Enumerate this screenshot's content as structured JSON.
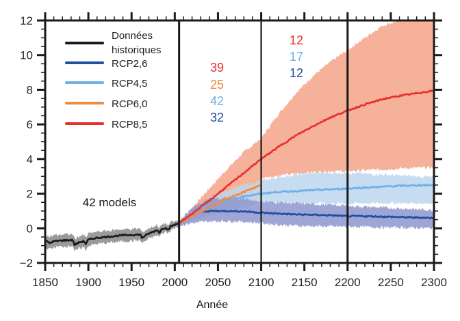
{
  "chart_data": {
    "type": "line",
    "title": "",
    "xlabel": "Année",
    "ylabel": "",
    "xlim": [
      1850,
      2300
    ],
    "ylim": [
      -2,
      12
    ],
    "grid": false,
    "xticks": [
      1850,
      1900,
      1950,
      2000,
      2050,
      2100,
      2150,
      2200,
      2250,
      2300
    ],
    "xtick_labels": [
      "1850",
      "1900",
      "1950",
      "2000",
      "2050",
      "2100",
      "2150",
      "2200",
      "2250",
      "2300"
    ],
    "yticks": [
      -2,
      0,
      2,
      4,
      6,
      8,
      10,
      12
    ],
    "ytick_labels": [
      "−2",
      "0",
      "2",
      "4",
      "6",
      "8",
      "10",
      "12"
    ],
    "vertical_lines": [
      2005,
      2100,
      2200
    ],
    "legend": {
      "placement": "top-left",
      "entries": [
        {
          "label": "Données historiques",
          "label_lines": [
            "Données",
            "historiques"
          ],
          "color": "#1a1a1a"
        },
        {
          "label": "RCP2,6",
          "color": "#1f4fa0"
        },
        {
          "label": "RCP4,5",
          "color": "#6fb0e4"
        },
        {
          "label": "RCP6,0",
          "color": "#f08a3e"
        },
        {
          "label": "RCP8,5",
          "color": "#e8302c"
        }
      ]
    },
    "annotations": {
      "models_label": "42 models",
      "model_counts_2006_2100": [
        {
          "scenario": "RCP8,5",
          "count": "39",
          "color": "#e8302c"
        },
        {
          "scenario": "RCP6,0",
          "count": "25",
          "color": "#f08a3e"
        },
        {
          "scenario": "RCP4,5",
          "count": "42",
          "color": "#6fb0e4"
        },
        {
          "scenario": "RCP2,6",
          "count": "32",
          "color": "#1f4fa0"
        }
      ],
      "model_counts_2101_2200": [
        {
          "scenario": "RCP8,5",
          "count": "12",
          "color": "#e8302c"
        },
        {
          "scenario": "RCP4,5",
          "count": "17",
          "color": "#6fb0e4"
        },
        {
          "scenario": "RCP2,6",
          "count": "12",
          "color": "#1f4fa0"
        }
      ]
    },
    "series": [
      {
        "name": "Données historiques",
        "color": "#1a1a1a",
        "band_color": "#9a9a9c",
        "x": [
          1850,
          1855,
          1860,
          1870,
          1882,
          1884,
          1890,
          1895,
          1897,
          1900,
          1910,
          1920,
          1930,
          1940,
          1950,
          1960,
          1962,
          1964,
          1970,
          1975,
          1980,
          1982,
          1985,
          1990,
          1992,
          1995,
          2000,
          2005
        ],
        "mean": [
          -0.7,
          -0.85,
          -0.75,
          -0.7,
          -0.68,
          -0.95,
          -0.8,
          -0.75,
          -0.9,
          -0.65,
          -0.55,
          -0.5,
          -0.45,
          -0.4,
          -0.38,
          -0.36,
          -0.55,
          -0.48,
          -0.3,
          -0.2,
          -0.1,
          -0.25,
          -0.05,
          0.05,
          -0.1,
          0.1,
          0.2,
          0.3
        ],
        "lower": [
          -1.1,
          -1.2,
          -1.1,
          -1.05,
          -1.0,
          -1.35,
          -1.15,
          -1.1,
          -1.25,
          -1.0,
          -0.9,
          -0.85,
          -0.8,
          -0.75,
          -0.72,
          -0.7,
          -0.85,
          -0.8,
          -0.6,
          -0.5,
          -0.4,
          -0.5,
          -0.3,
          -0.2,
          -0.3,
          -0.1,
          0.0,
          0.15
        ],
        "upper": [
          -0.35,
          -0.5,
          -0.4,
          -0.35,
          -0.35,
          -0.6,
          -0.45,
          -0.4,
          -0.55,
          -0.3,
          -0.2,
          -0.15,
          -0.1,
          -0.05,
          -0.05,
          -0.02,
          -0.25,
          -0.18,
          0.0,
          0.1,
          0.2,
          0.0,
          0.2,
          0.3,
          0.15,
          0.35,
          0.4,
          0.45
        ]
      },
      {
        "name": "RCP8,5",
        "color": "#e8302c",
        "band_color": "#f4a38a",
        "x": [
          2005,
          2020,
          2040,
          2060,
          2080,
          2100,
          2120,
          2140,
          2160,
          2180,
          2200,
          2220,
          2240,
          2260,
          2280,
          2300
        ],
        "mean": [
          0.3,
          0.85,
          1.6,
          2.4,
          3.2,
          4.0,
          4.7,
          5.35,
          5.9,
          6.4,
          6.8,
          7.15,
          7.45,
          7.65,
          7.8,
          7.95
        ],
        "lower": [
          0.2,
          0.5,
          0.9,
          1.3,
          1.65,
          2.9,
          3.05,
          3.15,
          3.25,
          3.3,
          3.3,
          3.35,
          3.4,
          3.45,
          3.5,
          3.5
        ],
        "upper": [
          0.4,
          1.2,
          2.3,
          3.4,
          4.4,
          5.2,
          6.6,
          7.8,
          8.8,
          9.6,
          10.3,
          11.0,
          11.7,
          12,
          12,
          12
        ]
      },
      {
        "name": "RCP6,0",
        "color": "#f08a3e",
        "band_color": "#f7b48c",
        "x": [
          2005,
          2020,
          2040,
          2060,
          2080,
          2100
        ],
        "mean": [
          0.3,
          0.7,
          1.2,
          1.7,
          2.1,
          2.5
        ],
        "lower": [
          0.2,
          0.45,
          0.8,
          1.1,
          1.35,
          1.6
        ],
        "upper": [
          0.4,
          0.95,
          1.6,
          2.2,
          2.8,
          3.2
        ]
      },
      {
        "name": "RCP4,5",
        "color": "#6fb0e4",
        "band_color": "#bcd6ef",
        "x": [
          2005,
          2020,
          2040,
          2060,
          2080,
          2100,
          2120,
          2140,
          2160,
          2180,
          2200,
          2220,
          2240,
          2260,
          2280,
          2300
        ],
        "mean": [
          0.3,
          0.75,
          1.25,
          1.6,
          1.85,
          2.0,
          2.1,
          2.15,
          2.2,
          2.25,
          2.3,
          2.35,
          2.4,
          2.45,
          2.48,
          2.5
        ],
        "lower": [
          0.2,
          0.45,
          0.75,
          1.0,
          1.2,
          1.5,
          1.5,
          1.48,
          1.45,
          1.45,
          1.42,
          1.45,
          1.45,
          1.45,
          1.45,
          1.45
        ],
        "upper": [
          0.4,
          1.0,
          1.7,
          2.2,
          2.5,
          2.75,
          2.95,
          3.1,
          3.2,
          3.2,
          3.2,
          3.15,
          3.1,
          3.05,
          3.0,
          2.95
        ]
      },
      {
        "name": "RCP2,6",
        "color": "#1f4fa0",
        "band_color": "#8e96cf",
        "x": [
          2005,
          2020,
          2030,
          2040,
          2060,
          2080,
          2100,
          2120,
          2140,
          2160,
          2180,
          2200,
          2220,
          2240,
          2260,
          2280,
          2300
        ],
        "mean": [
          0.3,
          0.75,
          0.95,
          1.0,
          1.0,
          0.98,
          0.9,
          0.85,
          0.8,
          0.78,
          0.75,
          0.7,
          0.7,
          0.68,
          0.65,
          0.62,
          0.6
        ],
        "lower": [
          0.15,
          0.3,
          0.35,
          0.4,
          0.42,
          0.38,
          0.3,
          0.2,
          0.15,
          0.12,
          0.1,
          0.1,
          0.08,
          0.05,
          0.05,
          0.02,
          0.0
        ],
        "upper": [
          0.45,
          1.15,
          1.45,
          1.7,
          1.75,
          1.7,
          1.55,
          1.5,
          1.45,
          1.4,
          1.35,
          1.3,
          1.25,
          1.2,
          1.15,
          1.1,
          1.05
        ]
      }
    ]
  }
}
